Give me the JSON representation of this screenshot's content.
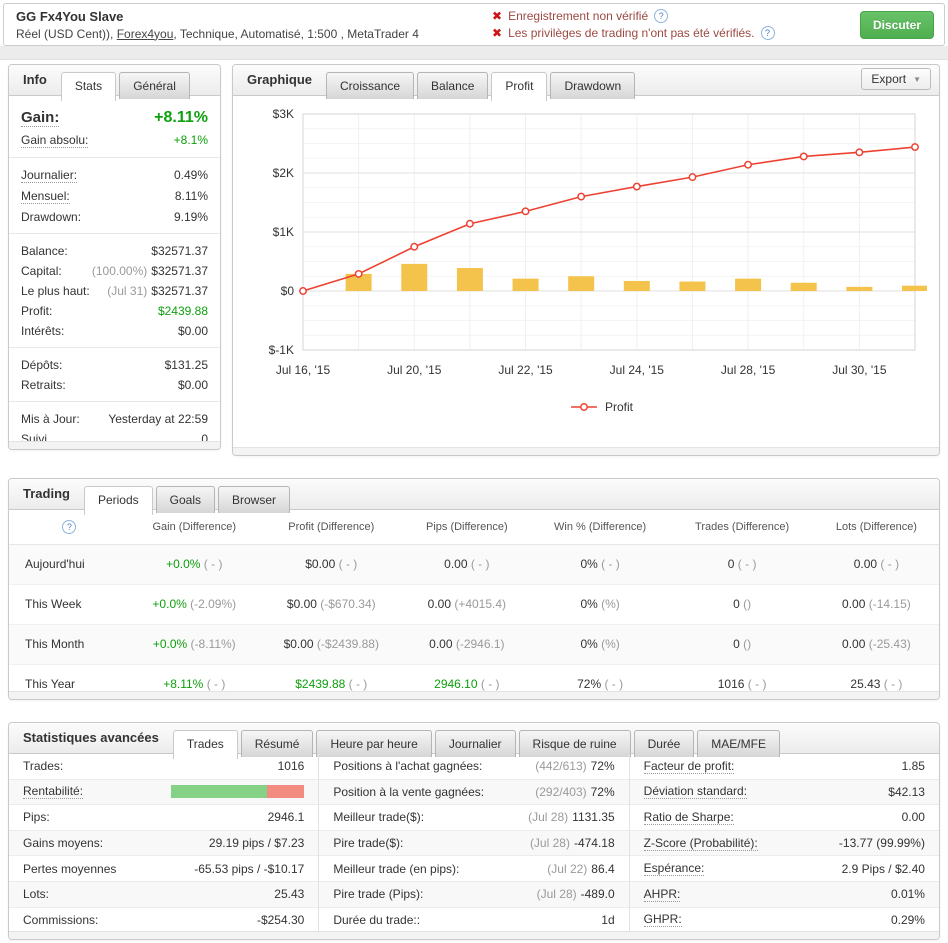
{
  "colors": {
    "green": "#0ea00e",
    "warning_red": "#cc1616",
    "line_red": "#ed4232",
    "bar_yellow": "#f3c34c",
    "link_blue": "#4a7fc1"
  },
  "header": {
    "title": "GG Fx4You Slave",
    "subtitle_prefix": "Réel (USD Cent)), ",
    "subtitle_link": "Forex4you",
    "subtitle_suffix": ", Technique, Automatisé, 1:500 , MetaTrader 4",
    "warnings": [
      "Enregistrement non vérifié",
      "Les privilèges de trading n'ont pas été vérifiés."
    ],
    "warning_icon": "x-icon",
    "help_icon": "?",
    "chat_button": "Discuter"
  },
  "info_panel": {
    "label": "Info",
    "tabs": [
      {
        "label": "Stats",
        "active": true
      },
      {
        "label": "Général",
        "active": false
      }
    ],
    "sections": [
      [
        {
          "label": "Gain:",
          "value": "+8.11%",
          "green": true,
          "big": true,
          "dotted": true
        },
        {
          "label": "Gain absolu:",
          "value": "+8.1%",
          "green": true,
          "dotted": true
        }
      ],
      [
        {
          "label": "Journalier:",
          "value": "0.49%",
          "dotted": true
        },
        {
          "label": "Mensuel:",
          "value": "8.11%",
          "dotted": true
        },
        {
          "label": "Drawdown:",
          "value": "9.19%"
        }
      ],
      [
        {
          "label": "Balance:",
          "value": "$32571.37"
        },
        {
          "label": "Capital:",
          "gray": "(100.00%)",
          "value": "$32571.37"
        },
        {
          "label": "Le plus haut:",
          "gray": "(Jul 31)",
          "value": "$32571.37"
        },
        {
          "label": "Profit:",
          "value": "$2439.88",
          "green": true
        },
        {
          "label": "Intérêts:",
          "value": "$0.00"
        }
      ],
      [
        {
          "label": "Dépôts:",
          "value": "$131.25"
        },
        {
          "label": "Retraits:",
          "value": "$0.00"
        }
      ],
      [
        {
          "label": "Mis à Jour:",
          "value": "Yesterday at 22:59"
        },
        {
          "label": "Suivi",
          "value": "0"
        }
      ]
    ]
  },
  "chart_panel": {
    "label": "Graphique",
    "tabs": [
      {
        "label": "Croissance",
        "active": false
      },
      {
        "label": "Balance",
        "active": false
      },
      {
        "label": "Profit",
        "active": true
      },
      {
        "label": "Drawdown",
        "active": false
      }
    ],
    "export_label": "Export"
  },
  "chart_data": {
    "type": "line",
    "title": "",
    "n_points": 12,
    "x_tick_indices": [
      0,
      2,
      4,
      6,
      8,
      10
    ],
    "x_tick_labels": [
      "Jul 16, '15",
      "Jul 20, '15",
      "Jul 22, '15",
      "Jul 24, '15",
      "Jul 28, '15",
      "Jul 30, '15"
    ],
    "series": [
      {
        "name": "Profit",
        "type": "line",
        "color": "#ed4232",
        "values": [
          0,
          290,
          750,
          1140,
          1350,
          1600,
          1770,
          1930,
          2140,
          2280,
          2350,
          2440
        ]
      },
      {
        "name": "Profit (daily)",
        "type": "bar",
        "color": "#f3c34c",
        "start_index": 1,
        "values": [
          290,
          460,
          390,
          210,
          250,
          170,
          160,
          210,
          140,
          70,
          90
        ]
      }
    ],
    "ylim": [
      -1000,
      3000
    ],
    "y_ticks": [
      {
        "label": "$3K",
        "value": 3000
      },
      {
        "label": "$2K",
        "value": 2000
      },
      {
        "label": "$1K",
        "value": 1000
      },
      {
        "label": "$0",
        "value": 0
      },
      {
        "label": "$-1K",
        "value": -1000
      }
    ],
    "grid": true,
    "legend": [
      "Profit"
    ],
    "legend_position": "bottom"
  },
  "trading_panel": {
    "label": "Trading",
    "tabs": [
      {
        "label": "Periods",
        "active": true
      },
      {
        "label": "Goals",
        "active": false
      },
      {
        "label": "Browser",
        "active": false
      }
    ],
    "columns": [
      "Gain (Difference)",
      "Profit (Difference)",
      "Pips (Difference)",
      "Win % (Difference)",
      "Trades (Difference)",
      "Lots (Difference)"
    ],
    "rows": [
      {
        "label": "Aujourd'hui",
        "cells": [
          {
            "v": "+0.0%",
            "g": "( - )",
            "green": true
          },
          {
            "v": "$0.00",
            "g": "( - )"
          },
          {
            "v": "0.00",
            "g": "( - )"
          },
          {
            "v": "0%",
            "g": "( - )"
          },
          {
            "v": "0",
            "g": "( - )"
          },
          {
            "v": "0.00",
            "g": "( - )"
          }
        ]
      },
      {
        "label": "This Week",
        "cells": [
          {
            "v": "+0.0%",
            "g": "(-2.09%)",
            "green": true
          },
          {
            "v": "$0.00",
            "g": "(-$670.34)"
          },
          {
            "v": "0.00",
            "g": "(+4015.4)"
          },
          {
            "v": "0%",
            "g": "(%)"
          },
          {
            "v": "0",
            "g": "()"
          },
          {
            "v": "0.00",
            "g": "(-14.15)"
          }
        ]
      },
      {
        "label": "This Month",
        "cells": [
          {
            "v": "+0.0%",
            "g": "(-8.11%)",
            "green": true
          },
          {
            "v": "$0.00",
            "g": "(-$2439.88)"
          },
          {
            "v": "0.00",
            "g": "(-2946.1)"
          },
          {
            "v": "0%",
            "g": "(%)"
          },
          {
            "v": "0",
            "g": "()"
          },
          {
            "v": "0.00",
            "g": "(-25.43)"
          }
        ]
      },
      {
        "label": "This Year",
        "cells": [
          {
            "v": "+8.11%",
            "g": "( - )",
            "green": true
          },
          {
            "v": "$2439.88",
            "g": "( - )",
            "green": true
          },
          {
            "v": "2946.10",
            "g": "( - )",
            "green": true
          },
          {
            "v": "72%",
            "g": "( - )"
          },
          {
            "v": "1016",
            "g": "( - )"
          },
          {
            "v": "25.43",
            "g": "( - )"
          }
        ]
      }
    ]
  },
  "advanced_panel": {
    "label": "Statistiques avancées",
    "tabs": [
      {
        "label": "Trades",
        "active": true
      },
      {
        "label": "Résumé",
        "active": false
      },
      {
        "label": "Heure par heure",
        "active": false
      },
      {
        "label": "Journalier",
        "active": false
      },
      {
        "label": "Risque de ruine",
        "active": false
      },
      {
        "label": "Durée",
        "active": false
      },
      {
        "label": "MAE/MFE",
        "active": false
      }
    ],
    "columns": [
      [
        {
          "label": "Trades:",
          "value": "1016"
        },
        {
          "label": "Rentabilité:",
          "bar": {
            "green_pct": 72,
            "red_pct": 28
          },
          "dotted": true
        },
        {
          "label": "Pips:",
          "value": "2946.1"
        },
        {
          "label": "Gains moyens:",
          "value": "29.19 pips / $7.23"
        },
        {
          "label": "Pertes moyennes",
          "value": "-65.53 pips / -$10.17"
        },
        {
          "label": "Lots:",
          "value": "25.43"
        },
        {
          "label": "Commissions:",
          "value": "-$254.30"
        }
      ],
      [
        {
          "label": "Positions à l'achat gagnées:",
          "gray": "(442/613)",
          "value": "72%"
        },
        {
          "label": "Position à la vente gagnées:",
          "gray": "(292/403)",
          "value": "72%"
        },
        {
          "label": "Meilleur trade($):",
          "gray": "(Jul 28)",
          "value": "1131.35"
        },
        {
          "label": "Pire trade($):",
          "gray": "(Jul 28)",
          "value": "-474.18"
        },
        {
          "label": "Meilleur trade (en pips):",
          "gray": "(Jul 22)",
          "value": "86.4"
        },
        {
          "label": "Pire trade (Pips):",
          "gray": "(Jul 28)",
          "value": "-489.0"
        },
        {
          "label": "Durée du trade::",
          "value": "1d"
        }
      ],
      [
        {
          "label": "Facteur de profit:",
          "value": "1.85",
          "dotted": true
        },
        {
          "label": "Déviation standard:",
          "value": "$42.13",
          "dotted": true
        },
        {
          "label": "Ratio de Sharpe:",
          "value": "0.00",
          "dotted": true
        },
        {
          "label": "Z-Score (Probabilité):",
          "value": "-13.77 (99.99%)",
          "dotted": true
        },
        {
          "label": "Espérance:",
          "value": "2.9 Pips / $2.40",
          "dotted": true
        },
        {
          "label": "AHPR:",
          "value": "0.01%",
          "dotted": true
        },
        {
          "label": "GHPR:",
          "value": "0.29%",
          "dotted": true
        }
      ]
    ]
  }
}
